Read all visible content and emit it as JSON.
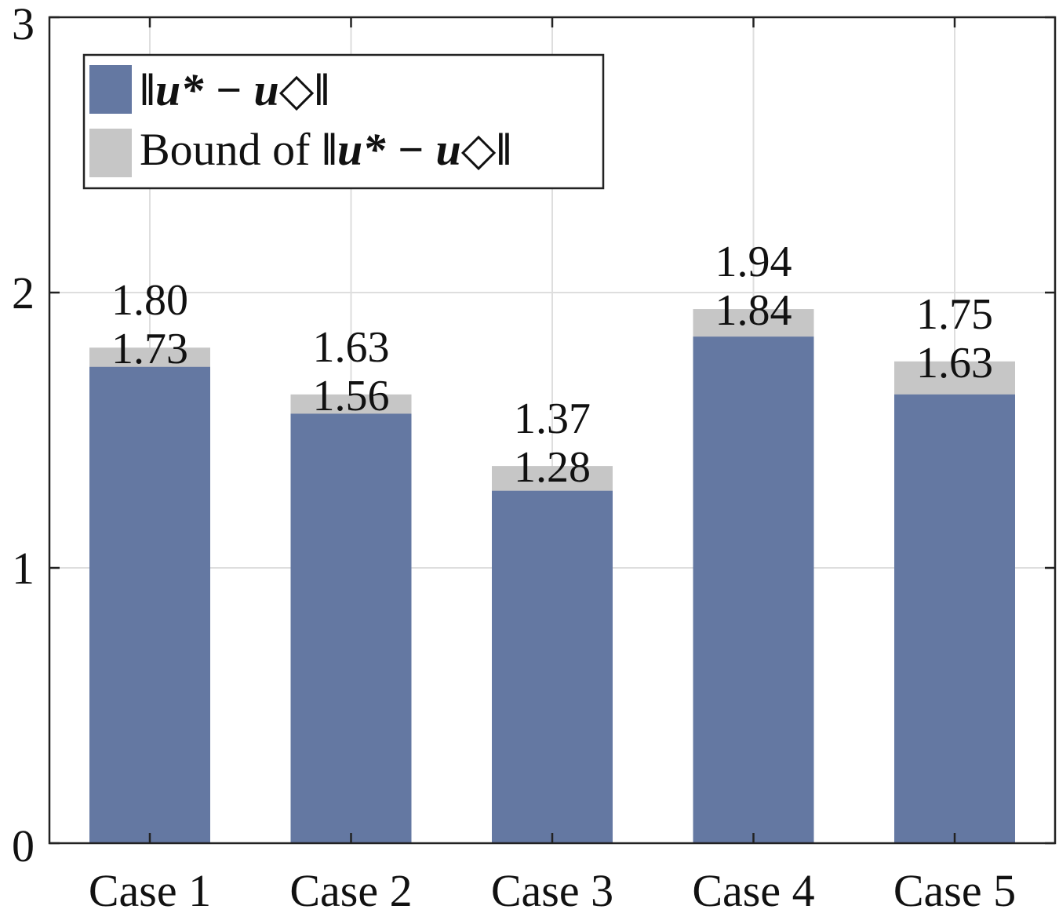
{
  "chart_data": {
    "type": "bar",
    "categories": [
      "Case 1",
      "Case 2",
      "Case 3",
      "Case 4",
      "Case 5"
    ],
    "series": [
      {
        "name": "‖u* − u◇‖",
        "values": [
          1.73,
          1.56,
          1.28,
          1.84,
          1.63
        ],
        "labels": [
          "1.73",
          "1.56",
          "1.28",
          "1.84",
          "1.63"
        ],
        "color": "#6478a2"
      },
      {
        "name": "Bound of ‖u* − u◇‖",
        "values": [
          1.8,
          1.63,
          1.37,
          1.94,
          1.75
        ],
        "labels": [
          "1.80",
          "1.63",
          "1.37",
          "1.94",
          "1.75"
        ],
        "color": "#c6c6c6"
      }
    ],
    "ylim": [
      0,
      3
    ],
    "yticks": [
      0,
      1,
      2,
      3
    ],
    "ytick_labels": [
      "0",
      "1",
      "2",
      "3"
    ],
    "title": "",
    "xlabel": "",
    "ylabel": "",
    "grid": true,
    "legend_position": "top-left",
    "legend": {
      "entry1_text": "‖u* − u◇‖",
      "entry2_prefix": "Bound of ",
      "entry2_math": "‖u* − u◇‖"
    }
  }
}
